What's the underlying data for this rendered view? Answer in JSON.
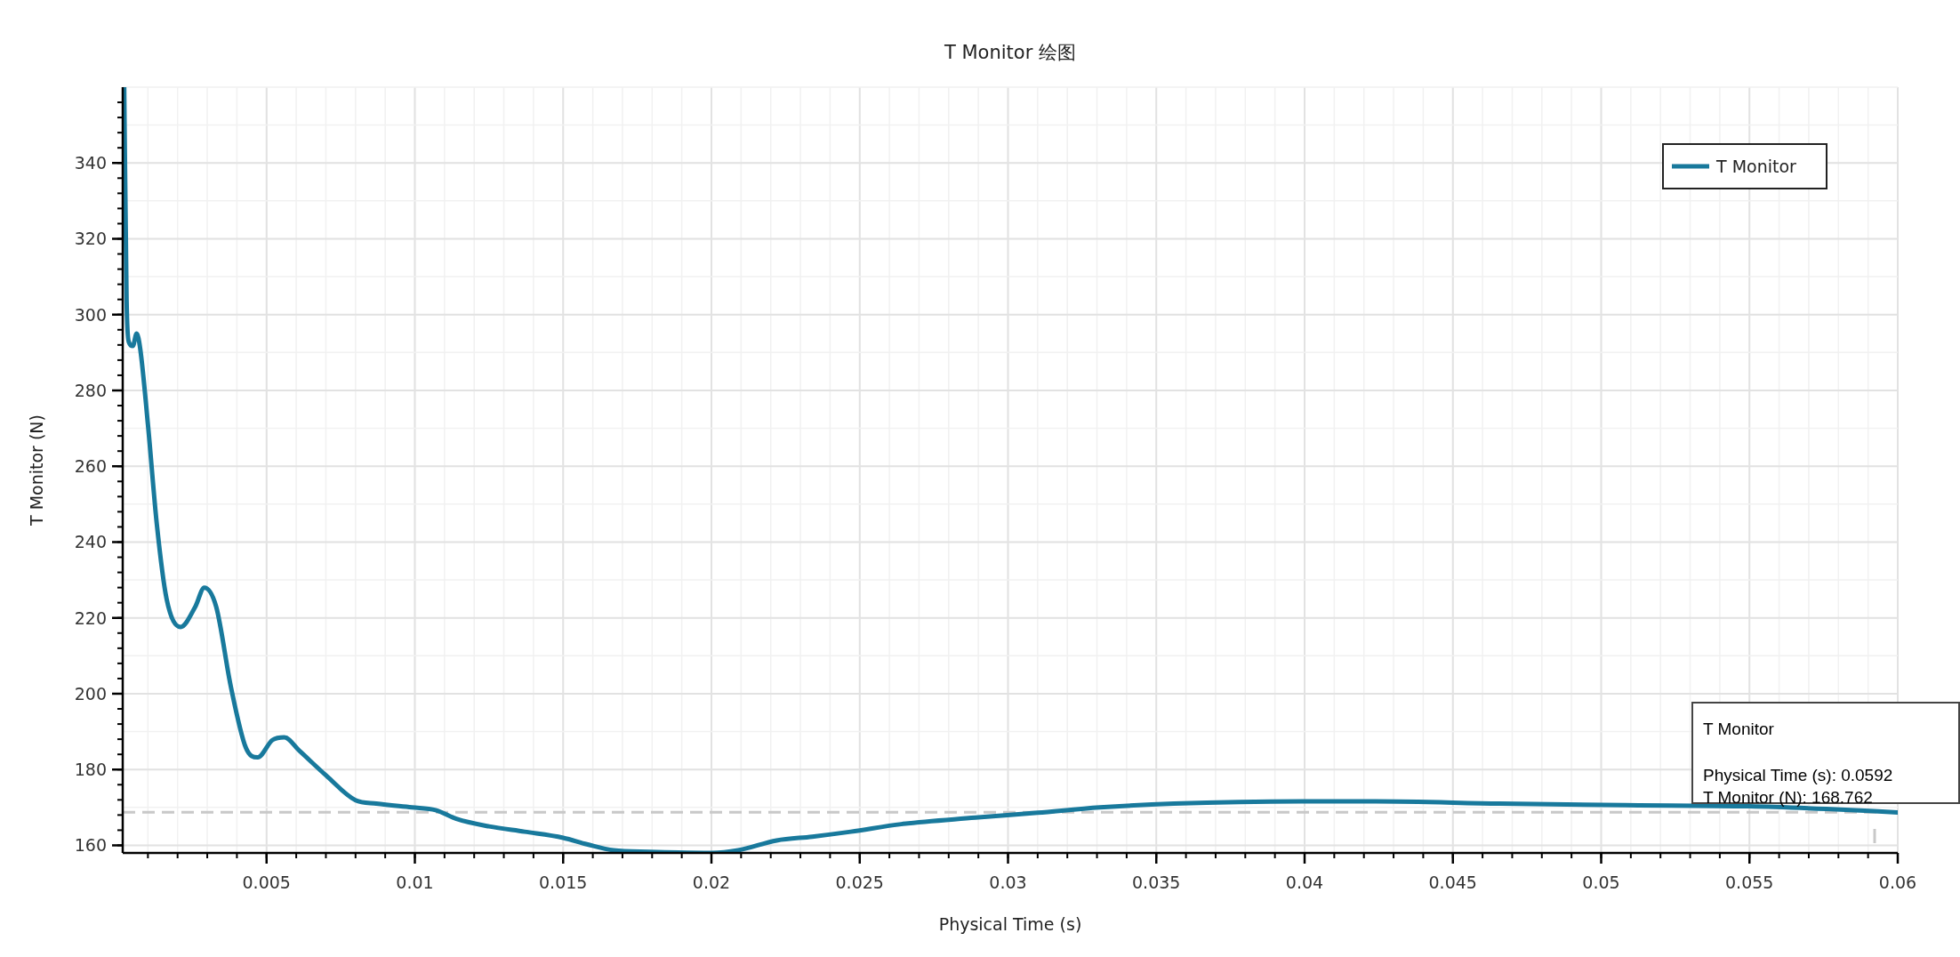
{
  "chart_data": {
    "type": "line",
    "title": "T Monitor 绘图",
    "xlabel": "Physical Time (s)",
    "ylabel": "T Monitor (N)",
    "xlim": [
      0.00015,
      0.06
    ],
    "xticks": [
      0.005,
      0.01,
      0.015,
      0.02,
      0.025,
      0.03,
      0.035,
      0.04,
      0.045,
      0.05,
      0.055,
      0.06
    ],
    "ylim": [
      158,
      360
    ],
    "yticks": [
      160,
      180,
      200,
      220,
      240,
      260,
      280,
      300,
      320,
      340
    ],
    "grid": true,
    "legend": "top right",
    "marker": "none",
    "line_style": "solid",
    "ref_lines": [
      {
        "axis": "y",
        "value": 168.762,
        "color": "#c8c8c8",
        "line_style": "dashed"
      }
    ],
    "annotations": [
      "T Monitor",
      "Physical Time (s): 0.0592",
      "T Monitor (N): 168.762"
    ],
    "series": [
      {
        "name": "T Monitor",
        "color": "#18799c",
        "x": [
          0.0002,
          0.00028,
          0.00036,
          0.00049,
          0.00062,
          0.00074,
          0.001,
          0.0013,
          0.00163,
          0.0021,
          0.0026,
          0.0029,
          0.0033,
          0.0038,
          0.0043,
          0.0047,
          0.0052,
          0.0056,
          0.0061,
          0.007,
          0.008,
          0.0087,
          0.0099,
          0.0107,
          0.0114,
          0.0125,
          0.0137,
          0.015,
          0.0158,
          0.0167,
          0.0179,
          0.02,
          0.0209,
          0.0222,
          0.0234,
          0.0247,
          0.0264,
          0.0289,
          0.031,
          0.0331,
          0.0356,
          0.0399,
          0.0424,
          0.0466,
          0.0508,
          0.055,
          0.0576,
          0.06
        ],
        "values": [
          360,
          304,
          292.7,
          291.7,
          295,
          291,
          271,
          244.7,
          225,
          217.6,
          223,
          228,
          223,
          201.7,
          185.8,
          183.2,
          187.8,
          188.5,
          185,
          178.5,
          171.9,
          171,
          170,
          169.3,
          167,
          165,
          163.6,
          162,
          160.3,
          158.7,
          158.3,
          158,
          158.7,
          161.3,
          162.3,
          163.6,
          165.6,
          167.3,
          168.6,
          170,
          171,
          171.6,
          171.6,
          171,
          170.6,
          170.3,
          169.6,
          168.7
        ]
      }
    ]
  }
}
